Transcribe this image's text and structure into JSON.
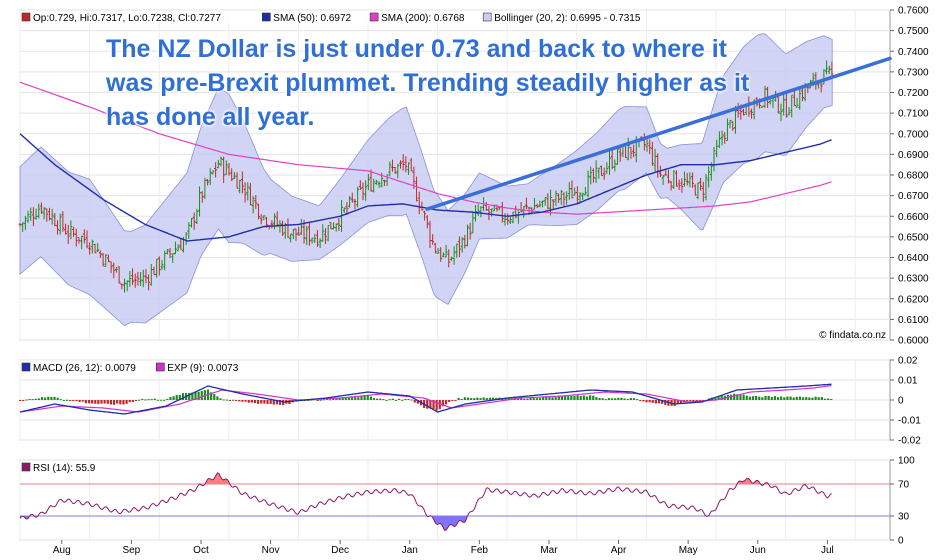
{
  "annotation": "The NZ Dollar is just under 0.73 and back to where it was pre-Brexit plummet. Trending steadily higher as it has done all year.",
  "watermark": "© findata.co.nz",
  "colors": {
    "price_up": "#1c8c1c",
    "price_down": "#c0282a",
    "sma50": "#1f2ea8",
    "sma200": "#e040c8",
    "bollinger_fill": "#c9cdf2",
    "bollinger_edge": "#8a90d8",
    "trendline": "#3a6fd8",
    "macd": "#1f2ea8",
    "exp": "#cc33cc",
    "hist_pos": "#1c8c1c",
    "hist_neg": "#c0282a",
    "rsi": "#8b1a6b",
    "rsi_over": "#ff6666",
    "rsi_under": "#6a5cff"
  },
  "chart_data": [
    {
      "type": "line",
      "panel": "price",
      "legend": [
        {
          "label": "Op:0.729, Hi:0.7317, Lo:0.7238, Cl:0.7277",
          "color": "#c0282a"
        },
        {
          "label": "SMA (50): 0.6972",
          "color": "#1f2ea8"
        },
        {
          "label": "SMA (200): 0.6768",
          "color": "#e040c8"
        },
        {
          "label": "Bollinger (20, 2): 0.6995 - 0.7315",
          "color": "#c9cdf2"
        }
      ],
      "ylim": [
        0.6,
        0.76
      ],
      "yticks": [
        "0.7600",
        "0.7500",
        "0.7400",
        "0.7300",
        "0.7200",
        "0.7100",
        "0.7000",
        "0.6900",
        "0.6800",
        "0.6700",
        "0.6600",
        "0.6500",
        "0.6400",
        "0.6300",
        "0.6200",
        "0.6100",
        "0.6000"
      ],
      "months": [
        "Aug",
        "Sep",
        "Oct",
        "Nov",
        "Dec",
        "Jan",
        "Feb",
        "Mar",
        "Apr",
        "May",
        "Jun",
        "Jul"
      ],
      "xlim": [
        0,
        12.5
      ],
      "close_anchors": [
        [
          0,
          0.656
        ],
        [
          0.3,
          0.665
        ],
        [
          0.7,
          0.652
        ],
        [
          1.0,
          0.648
        ],
        [
          1.2,
          0.64
        ],
        [
          1.5,
          0.628
        ],
        [
          1.8,
          0.63
        ],
        [
          2.1,
          0.64
        ],
        [
          2.4,
          0.65
        ],
        [
          2.6,
          0.67
        ],
        [
          2.85,
          0.686
        ],
        [
          3.2,
          0.675
        ],
        [
          3.5,
          0.66
        ],
        [
          3.9,
          0.652
        ],
        [
          4.3,
          0.65
        ],
        [
          4.6,
          0.66
        ],
        [
          5.0,
          0.675
        ],
        [
          5.3,
          0.682
        ],
        [
          5.55,
          0.685
        ],
        [
          5.75,
          0.666
        ],
        [
          5.95,
          0.645
        ],
        [
          6.15,
          0.638
        ],
        [
          6.4,
          0.65
        ],
        [
          6.6,
          0.663
        ],
        [
          7.0,
          0.66
        ],
        [
          7.4,
          0.665
        ],
        [
          7.7,
          0.668
        ],
        [
          8.0,
          0.672
        ],
        [
          8.3,
          0.68
        ],
        [
          8.6,
          0.69
        ],
        [
          9.0,
          0.695
        ],
        [
          9.2,
          0.68
        ],
        [
          9.5,
          0.677
        ],
        [
          9.8,
          0.672
        ],
        [
          10.1,
          0.7
        ],
        [
          10.4,
          0.712
        ],
        [
          10.7,
          0.718
        ],
        [
          11.0,
          0.712
        ],
        [
          11.3,
          0.722
        ],
        [
          11.55,
          0.728
        ],
        [
          11.67,
          0.7277
        ]
      ],
      "sma50_anchors": [
        [
          0,
          0.7
        ],
        [
          0.5,
          0.685
        ],
        [
          1.2,
          0.668
        ],
        [
          1.8,
          0.656
        ],
        [
          2.4,
          0.648
        ],
        [
          3.0,
          0.65
        ],
        [
          3.5,
          0.655
        ],
        [
          4.0,
          0.656
        ],
        [
          4.6,
          0.66
        ],
        [
          5.0,
          0.665
        ],
        [
          5.5,
          0.666
        ],
        [
          6.0,
          0.663
        ],
        [
          6.5,
          0.662
        ],
        [
          7.0,
          0.66
        ],
        [
          7.5,
          0.662
        ],
        [
          8.0,
          0.666
        ],
        [
          8.5,
          0.673
        ],
        [
          9.0,
          0.68
        ],
        [
          9.5,
          0.685
        ],
        [
          10.0,
          0.685
        ],
        [
          10.5,
          0.687
        ],
        [
          11.0,
          0.691
        ],
        [
          11.5,
          0.695
        ],
        [
          11.67,
          0.6972
        ]
      ],
      "sma200_anchors": [
        [
          0,
          0.725
        ],
        [
          1.0,
          0.713
        ],
        [
          2.0,
          0.7
        ],
        [
          3.0,
          0.69
        ],
        [
          4.0,
          0.685
        ],
        [
          5.0,
          0.682
        ],
        [
          6.0,
          0.671
        ],
        [
          6.5,
          0.667
        ],
        [
          7.0,
          0.664
        ],
        [
          7.5,
          0.662
        ],
        [
          8.0,
          0.661
        ],
        [
          8.5,
          0.662
        ],
        [
          9.0,
          0.663
        ],
        [
          9.5,
          0.664
        ],
        [
          10.0,
          0.665
        ],
        [
          10.5,
          0.667
        ],
        [
          11.0,
          0.671
        ],
        [
          11.5,
          0.675
        ],
        [
          11.67,
          0.6768
        ]
      ],
      "bollinger_width_anchors": [
        [
          0,
          0.026
        ],
        [
          1.0,
          0.028
        ],
        [
          1.6,
          0.022
        ],
        [
          2.5,
          0.03
        ],
        [
          3.0,
          0.036
        ],
        [
          3.6,
          0.018
        ],
        [
          4.3,
          0.013
        ],
        [
          5.0,
          0.02
        ],
        [
          5.5,
          0.026
        ],
        [
          6.0,
          0.025
        ],
        [
          6.6,
          0.016
        ],
        [
          7.3,
          0.01
        ],
        [
          8.0,
          0.018
        ],
        [
          8.7,
          0.02
        ],
        [
          9.3,
          0.012
        ],
        [
          10.0,
          0.025
        ],
        [
          10.6,
          0.03
        ],
        [
          11.2,
          0.022
        ],
        [
          11.67,
          0.016
        ]
      ],
      "trendline": {
        "from": [
          5.85,
          0.6635
        ],
        "to": [
          12.5,
          0.7365
        ]
      }
    },
    {
      "type": "line",
      "panel": "macd",
      "legend": [
        {
          "label": "MACD (26, 12): 0.0079",
          "color": "#1f2ea8"
        },
        {
          "label": "EXP (9): 0.0073",
          "color": "#cc33cc"
        }
      ],
      "ylim": [
        -0.02,
        0.02
      ],
      "yticks": [
        "0.02",
        "0.01",
        "0",
        "-0.01",
        "-0.02"
      ],
      "macd_anchors": [
        [
          0,
          -0.006
        ],
        [
          0.5,
          -0.002
        ],
        [
          1.0,
          -0.005
        ],
        [
          1.5,
          -0.007
        ],
        [
          2.1,
          -0.003
        ],
        [
          2.7,
          0.007
        ],
        [
          3.2,
          0.003
        ],
        [
          3.8,
          -0.001
        ],
        [
          4.4,
          0.001
        ],
        [
          5.0,
          0.004
        ],
        [
          5.6,
          0.002
        ],
        [
          6.0,
          -0.006
        ],
        [
          6.4,
          -0.002
        ],
        [
          7.0,
          0.001
        ],
        [
          7.6,
          0.003
        ],
        [
          8.2,
          0.005
        ],
        [
          8.8,
          0.004
        ],
        [
          9.4,
          -0.002
        ],
        [
          9.8,
          -0.001
        ],
        [
          10.3,
          0.005
        ],
        [
          10.8,
          0.006
        ],
        [
          11.3,
          0.007
        ],
        [
          11.67,
          0.0079
        ]
      ],
      "exp_anchors": [
        [
          0,
          -0.006
        ],
        [
          0.6,
          -0.003
        ],
        [
          1.2,
          -0.004
        ],
        [
          1.7,
          -0.006
        ],
        [
          2.3,
          -0.002
        ],
        [
          2.9,
          0.005
        ],
        [
          3.4,
          0.003
        ],
        [
          4.0,
          0.0
        ],
        [
          4.6,
          0.001
        ],
        [
          5.2,
          0.003
        ],
        [
          5.8,
          0.001
        ],
        [
          6.2,
          -0.004
        ],
        [
          6.6,
          -0.002
        ],
        [
          7.2,
          0.001
        ],
        [
          7.8,
          0.002
        ],
        [
          8.4,
          0.004
        ],
        [
          9.0,
          0.003
        ],
        [
          9.6,
          -0.001
        ],
        [
          10.0,
          0.0
        ],
        [
          10.5,
          0.004
        ],
        [
          11.0,
          0.005
        ],
        [
          11.4,
          0.006
        ],
        [
          11.67,
          0.0073
        ]
      ]
    },
    {
      "type": "line",
      "panel": "rsi",
      "legend": [
        {
          "label": "RSI (14): 55.9",
          "color": "#8b1a6b"
        }
      ],
      "ylim": [
        0,
        100
      ],
      "yticks": [
        "100",
        "70",
        "30",
        "0"
      ],
      "levels": [
        70,
        30
      ],
      "rsi_anchors": [
        [
          0,
          27
        ],
        [
          0.3,
          32
        ],
        [
          0.6,
          50
        ],
        [
          1.0,
          45
        ],
        [
          1.4,
          35
        ],
        [
          1.8,
          40
        ],
        [
          2.2,
          52
        ],
        [
          2.5,
          63
        ],
        [
          2.85,
          82
        ],
        [
          3.2,
          58
        ],
        [
          3.6,
          45
        ],
        [
          4.0,
          34
        ],
        [
          4.3,
          45
        ],
        [
          4.7,
          55
        ],
        [
          5.0,
          60
        ],
        [
          5.4,
          62
        ],
        [
          5.6,
          58
        ],
        [
          5.85,
          32
        ],
        [
          6.1,
          14
        ],
        [
          6.4,
          25
        ],
        [
          6.7,
          63
        ],
        [
          7.0,
          60
        ],
        [
          7.4,
          55
        ],
        [
          7.8,
          62
        ],
        [
          8.2,
          58
        ],
        [
          8.6,
          64
        ],
        [
          9.0,
          60
        ],
        [
          9.3,
          43
        ],
        [
          9.7,
          40
        ],
        [
          9.9,
          30
        ],
        [
          10.2,
          62
        ],
        [
          10.4,
          76
        ],
        [
          10.8,
          68
        ],
        [
          11.0,
          57
        ],
        [
          11.3,
          68
        ],
        [
          11.6,
          55
        ],
        [
          11.67,
          55.9
        ]
      ]
    }
  ]
}
